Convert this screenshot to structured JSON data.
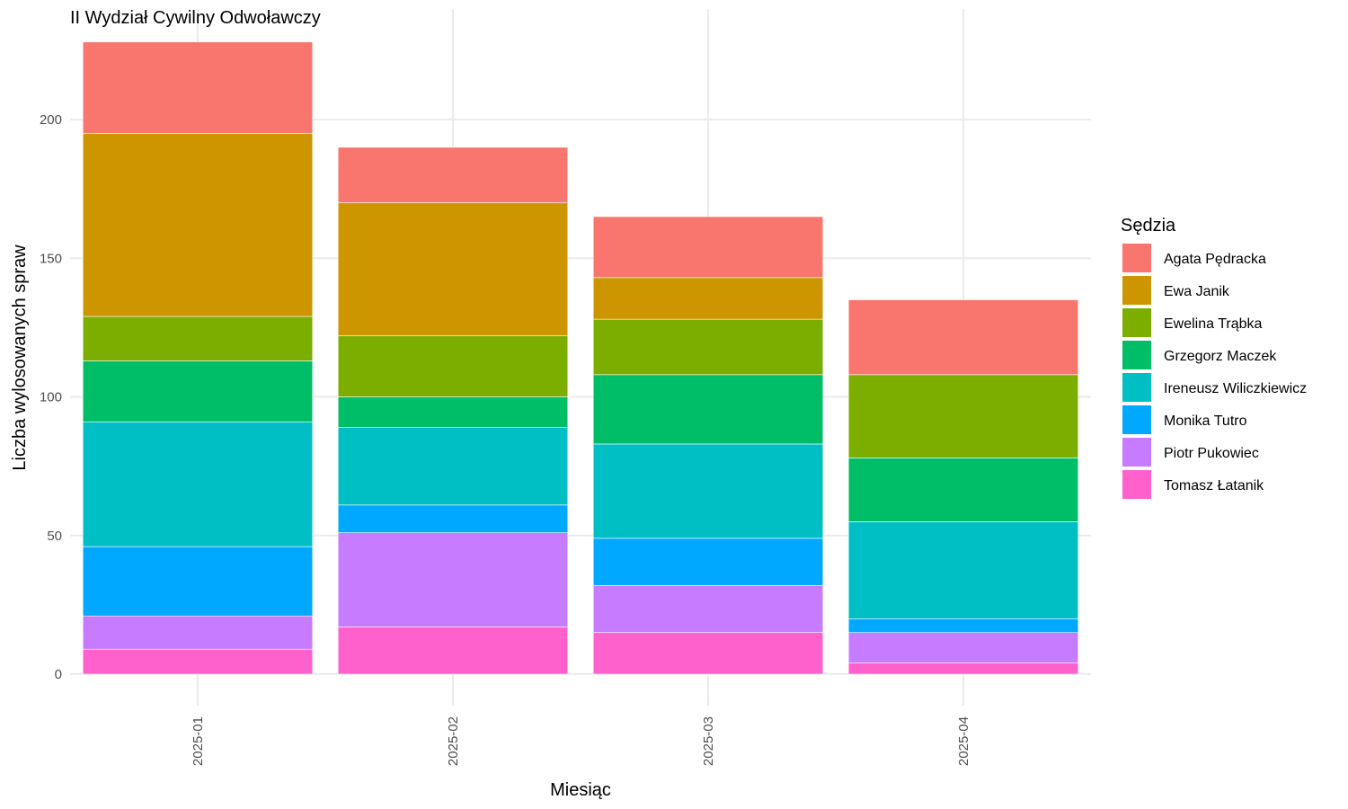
{
  "chart_data": {
    "type": "bar",
    "stacked": true,
    "title": "II Wydział Cywilny Odwoławczy",
    "xlabel": "Miesiąc",
    "ylabel": "Liczba wylosowanych spraw",
    "ylim": [
      0,
      230
    ],
    "yticks": [
      0,
      50,
      100,
      150,
      200
    ],
    "grid": true,
    "legend": {
      "title": "Sędzia",
      "position": "right"
    },
    "categories": [
      "2025-01",
      "2025-02",
      "2025-03",
      "2025-04"
    ],
    "series": [
      {
        "name": "Agata Pędracka",
        "color": "#F8766D",
        "values": [
          33,
          20,
          22,
          27
        ]
      },
      {
        "name": "Ewa Janik",
        "color": "#CD9600",
        "values": [
          66,
          48,
          15,
          0
        ]
      },
      {
        "name": "Ewelina Trąbka",
        "color": "#7CAE00",
        "values": [
          16,
          22,
          20,
          30
        ]
      },
      {
        "name": "Grzegorz Maczek",
        "color": "#00BE67",
        "values": [
          22,
          11,
          25,
          23
        ]
      },
      {
        "name": "Ireneusz Wiliczkiewicz",
        "color": "#00BFC4",
        "values": [
          45,
          28,
          34,
          35
        ]
      },
      {
        "name": "Monika Tutro",
        "color": "#00A9FF",
        "values": [
          25,
          10,
          17,
          5
        ]
      },
      {
        "name": "Piotr Pukowiec",
        "color": "#C77CFF",
        "values": [
          12,
          34,
          17,
          11
        ]
      },
      {
        "name": "Tomasz Łatanik",
        "color": "#FF61CC",
        "values": [
          9,
          17,
          15,
          4
        ]
      }
    ]
  }
}
